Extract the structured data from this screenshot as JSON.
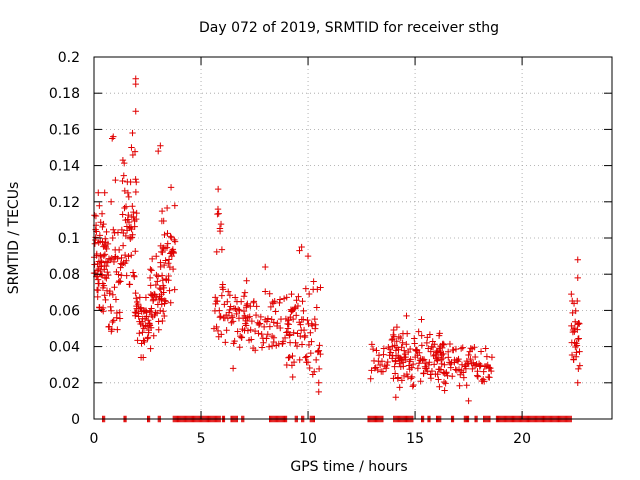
{
  "chart_data": {
    "type": "scatter",
    "title": "Day 072 of 2019, SRMTID for receiver sthg",
    "xlabel": "GPS time / hours",
    "ylabel": "SRMTID / TECUs",
    "xlim": [
      0,
      24.2
    ],
    "ylim": [
      0,
      0.2
    ],
    "x_ticks": [
      0,
      5,
      10,
      15,
      20
    ],
    "x_tick_labels": [
      "0",
      "5",
      "10",
      "15",
      "20"
    ],
    "y_ticks": [
      0,
      0.02,
      0.04,
      0.06,
      0.08,
      0.1,
      0.12,
      0.14,
      0.16,
      0.18,
      0.2
    ],
    "y_tick_labels": [
      "0",
      "0.02",
      "0.04",
      "0.06",
      "0.08",
      "0.1",
      "0.12",
      "0.14",
      "0.16",
      "0.18",
      "0.2"
    ],
    "grid": true,
    "marker": "+",
    "series_color": "#e00000",
    "clusters": [
      {
        "x": [
          0.0,
          0.6
        ],
        "y": [
          0.05,
          0.12
        ],
        "count": 70
      },
      {
        "x": [
          0.6,
          1.3
        ],
        "y": [
          0.045,
          0.11
        ],
        "count": 45
      },
      {
        "x": [
          1.3,
          2.0
        ],
        "y": [
          0.07,
          0.15
        ],
        "count": 55
      },
      {
        "x": [
          1.9,
          2.7
        ],
        "y": [
          0.035,
          0.075
        ],
        "count": 50
      },
      {
        "x": [
          2.6,
          3.3
        ],
        "y": [
          0.045,
          0.09
        ],
        "count": 45
      },
      {
        "x": [
          3.1,
          3.8
        ],
        "y": [
          0.06,
          0.125
        ],
        "count": 45
      },
      {
        "x": [
          5.7,
          6.0
        ],
        "y": [
          0.09,
          0.125
        ],
        "count": 8
      },
      {
        "x": [
          5.6,
          7.2
        ],
        "y": [
          0.035,
          0.08
        ],
        "count": 60
      },
      {
        "x": [
          7.0,
          8.4
        ],
        "y": [
          0.035,
          0.075
        ],
        "count": 45
      },
      {
        "x": [
          8.3,
          9.3
        ],
        "y": [
          0.03,
          0.07
        ],
        "count": 30
      },
      {
        "x": [
          9.0,
          10.6
        ],
        "y": [
          0.02,
          0.08
        ],
        "count": 70
      },
      {
        "x": [
          12.9,
          14.5
        ],
        "y": [
          0.018,
          0.045
        ],
        "count": 40
      },
      {
        "x": [
          13.9,
          16.4
        ],
        "y": [
          0.015,
          0.055
        ],
        "count": 110
      },
      {
        "x": [
          16.0,
          18.6
        ],
        "y": [
          0.015,
          0.045
        ],
        "count": 90
      },
      {
        "x": [
          22.3,
          22.7
        ],
        "y": [
          0.025,
          0.07
        ],
        "count": 30
      }
    ],
    "points": [
      {
        "x": 0.2,
        "y": 0.125
      },
      {
        "x": 0.5,
        "y": 0.125
      },
      {
        "x": 0.8,
        "y": 0.12
      },
      {
        "x": 1.0,
        "y": 0.132
      },
      {
        "x": 0.85,
        "y": 0.155
      },
      {
        "x": 0.9,
        "y": 0.156
      },
      {
        "x": 1.35,
        "y": 0.143
      },
      {
        "x": 1.75,
        "y": 0.15
      },
      {
        "x": 1.8,
        "y": 0.158
      },
      {
        "x": 1.95,
        "y": 0.17
      },
      {
        "x": 1.95,
        "y": 0.185
      },
      {
        "x": 1.95,
        "y": 0.188
      },
      {
        "x": 3.0,
        "y": 0.148
      },
      {
        "x": 3.1,
        "y": 0.151
      },
      {
        "x": 3.6,
        "y": 0.128
      },
      {
        "x": 2.2,
        "y": 0.034
      },
      {
        "x": 2.3,
        "y": 0.034
      },
      {
        "x": 5.8,
        "y": 0.127
      },
      {
        "x": 6.5,
        "y": 0.028
      },
      {
        "x": 8.0,
        "y": 0.084
      },
      {
        "x": 9.6,
        "y": 0.093
      },
      {
        "x": 9.7,
        "y": 0.095
      },
      {
        "x": 10.0,
        "y": 0.09
      },
      {
        "x": 10.5,
        "y": 0.015
      },
      {
        "x": 10.5,
        "y": 0.02
      },
      {
        "x": 14.6,
        "y": 0.057
      },
      {
        "x": 15.3,
        "y": 0.055
      },
      {
        "x": 17.5,
        "y": 0.01
      },
      {
        "x": 14.1,
        "y": 0.012
      },
      {
        "x": 22.6,
        "y": 0.088
      },
      {
        "x": 22.6,
        "y": 0.078
      },
      {
        "x": 22.6,
        "y": 0.02
      },
      {
        "x": 22.3,
        "y": 0.069
      }
    ],
    "zero_intervals": [
      [
        0.4,
        0.5
      ],
      [
        1.4,
        1.5
      ],
      [
        2.5,
        2.6
      ],
      [
        3.0,
        3.1
      ],
      [
        3.7,
        5.9
      ],
      [
        6.0,
        6.1
      ],
      [
        6.4,
        6.7
      ],
      [
        6.9,
        7.0
      ],
      [
        8.2,
        9.0
      ],
      [
        9.4,
        9.5
      ],
      [
        9.7,
        9.8
      ],
      [
        10.1,
        10.3
      ],
      [
        12.8,
        13.5
      ],
      [
        14.0,
        14.9
      ],
      [
        15.3,
        15.4
      ],
      [
        15.6,
        15.7
      ],
      [
        16.0,
        16.2
      ],
      [
        16.7,
        16.8
      ],
      [
        17.3,
        17.5
      ],
      [
        17.8,
        17.9
      ],
      [
        18.2,
        18.5
      ],
      [
        18.8,
        22.3
      ]
    ]
  }
}
